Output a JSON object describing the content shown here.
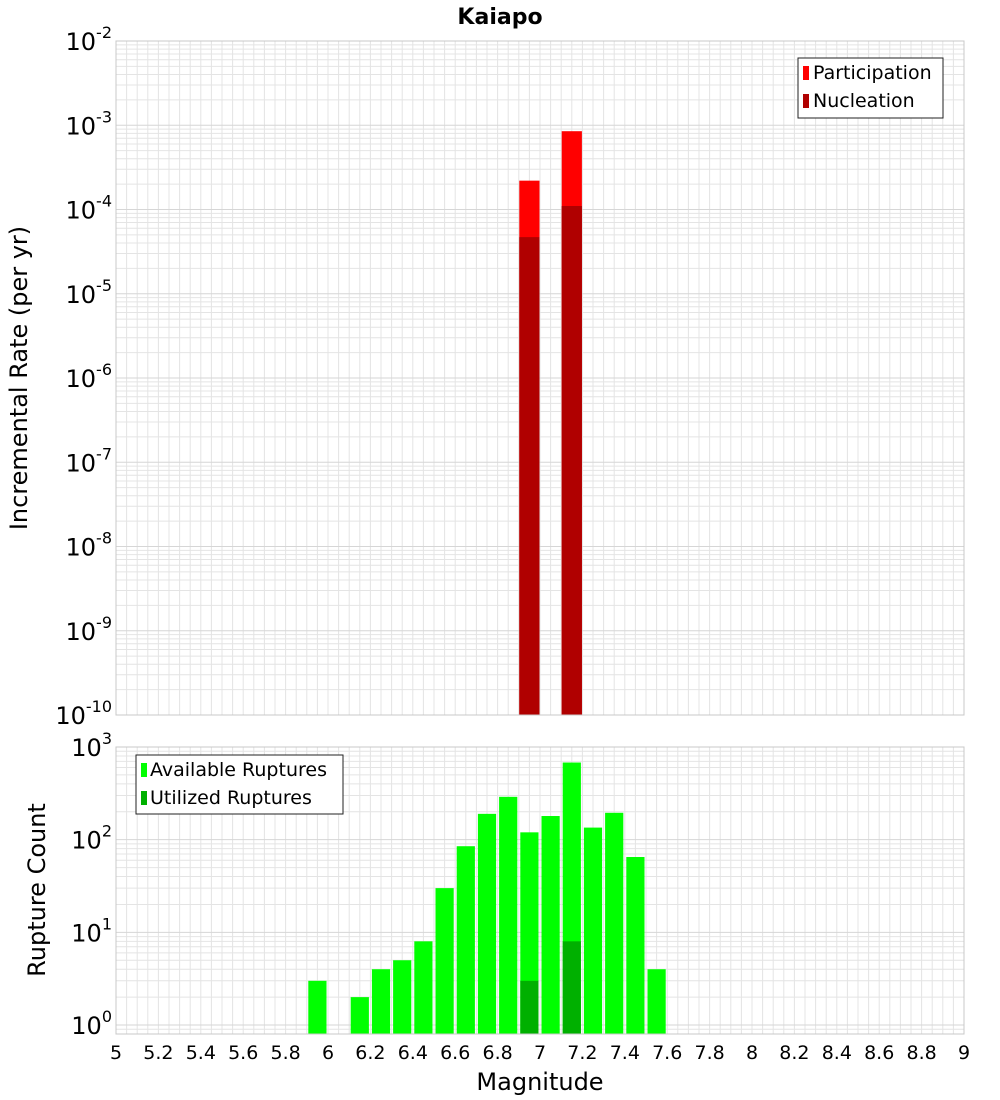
{
  "title": "Kaiapo",
  "colors": {
    "participation": "#ff0000",
    "nucleation": "#b00000",
    "available": "#00ff00",
    "utilized": "#00b000",
    "grid": "#e4e4e4",
    "frame": "#c8c8c8"
  },
  "chart_data": [
    {
      "type": "bar",
      "title": "Kaiapo",
      "xlabel": "",
      "ylabel": "Incremental Rate (per yr)",
      "yscale": "log",
      "xlim": [
        5,
        9
      ],
      "ylim": [
        1e-10,
        0.01
      ],
      "grid": true,
      "legend_position": "top-right",
      "bin_width": 0.1,
      "series": [
        {
          "name": "Participation",
          "x": [
            6.95,
            7.15
          ],
          "values": [
            0.00022,
            0.00085
          ]
        },
        {
          "name": "Nucleation",
          "x": [
            6.95,
            7.15
          ],
          "values": [
            4.7e-05,
            0.00011
          ]
        }
      ]
    },
    {
      "type": "bar",
      "title": "",
      "xlabel": "Magnitude",
      "ylabel": "Rupture Count",
      "yscale": "log",
      "xlim": [
        5,
        9
      ],
      "ylim": [
        0.8,
        1000
      ],
      "grid": true,
      "legend_position": "top-left",
      "bin_width": 0.1,
      "x_ticks": [
        "5",
        "5.2",
        "5.4",
        "5.6",
        "5.8",
        "6",
        "6.2",
        "6.4",
        "6.6",
        "6.8",
        "7",
        "7.2",
        "7.4",
        "7.6",
        "7.8",
        "8",
        "8.2",
        "8.4",
        "8.6",
        "8.8",
        "9"
      ],
      "series": [
        {
          "name": "Available Ruptures",
          "x": [
            5.95,
            6.15,
            6.25,
            6.35,
            6.45,
            6.55,
            6.65,
            6.75,
            6.85,
            6.95,
            7.05,
            7.15,
            7.25,
            7.35,
            7.45,
            7.55
          ],
          "values": [
            3,
            2,
            4,
            5,
            8,
            30,
            85,
            190,
            290,
            120,
            180,
            680,
            135,
            195,
            65,
            4
          ]
        },
        {
          "name": "Utilized Ruptures",
          "x": [
            6.95,
            7.15
          ],
          "values": [
            3,
            8
          ]
        }
      ]
    }
  ]
}
